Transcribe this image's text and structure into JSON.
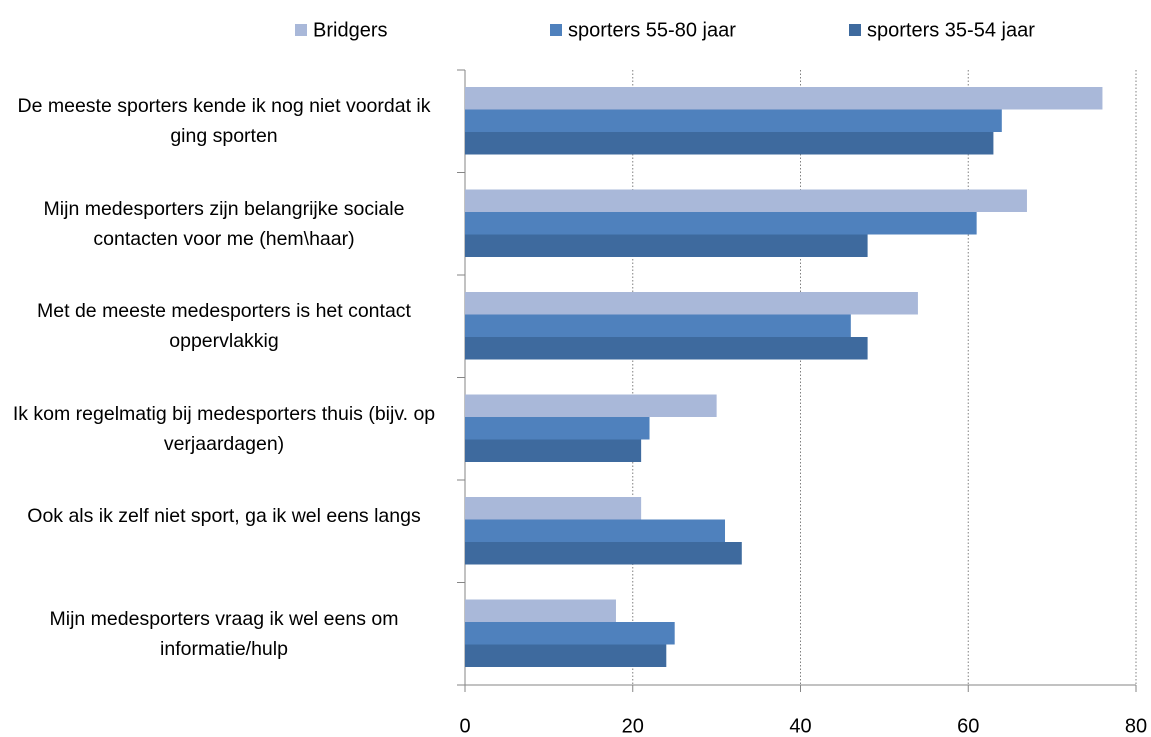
{
  "chart_data": {
    "type": "hbar",
    "categories": [
      "De meeste sporters kende ik nog niet voordat ik ging sporten",
      "Mijn medesporters zijn belangrijke sociale contacten voor me (hem\\haar)",
      "Met de meeste medesporters is het contact oppervlakkig",
      "Ik kom regelmatig bij medesporters thuis (bijv. op verjaardagen)",
      "Ook als ik zelf niet sport, ga ik wel eens langs",
      "Mijn medesporters vraag ik wel eens om informatie/hulp"
    ],
    "series": [
      {
        "name": "Bridgers",
        "color": "#a9b8d9",
        "values": [
          76,
          67,
          54,
          30,
          21,
          18
        ]
      },
      {
        "name": "sporters 55-80 jaar",
        "color": "#4f81bd",
        "values": [
          64,
          61,
          46,
          22,
          31,
          25
        ]
      },
      {
        "name": "sporters 35-54 jaar",
        "color": "#3e6a9e",
        "values": [
          63,
          48,
          48,
          21,
          33,
          24
        ]
      }
    ],
    "xlim": [
      0,
      80
    ],
    "xticks": [
      0,
      20,
      40,
      60,
      80
    ],
    "grid": true,
    "legend": "top"
  }
}
